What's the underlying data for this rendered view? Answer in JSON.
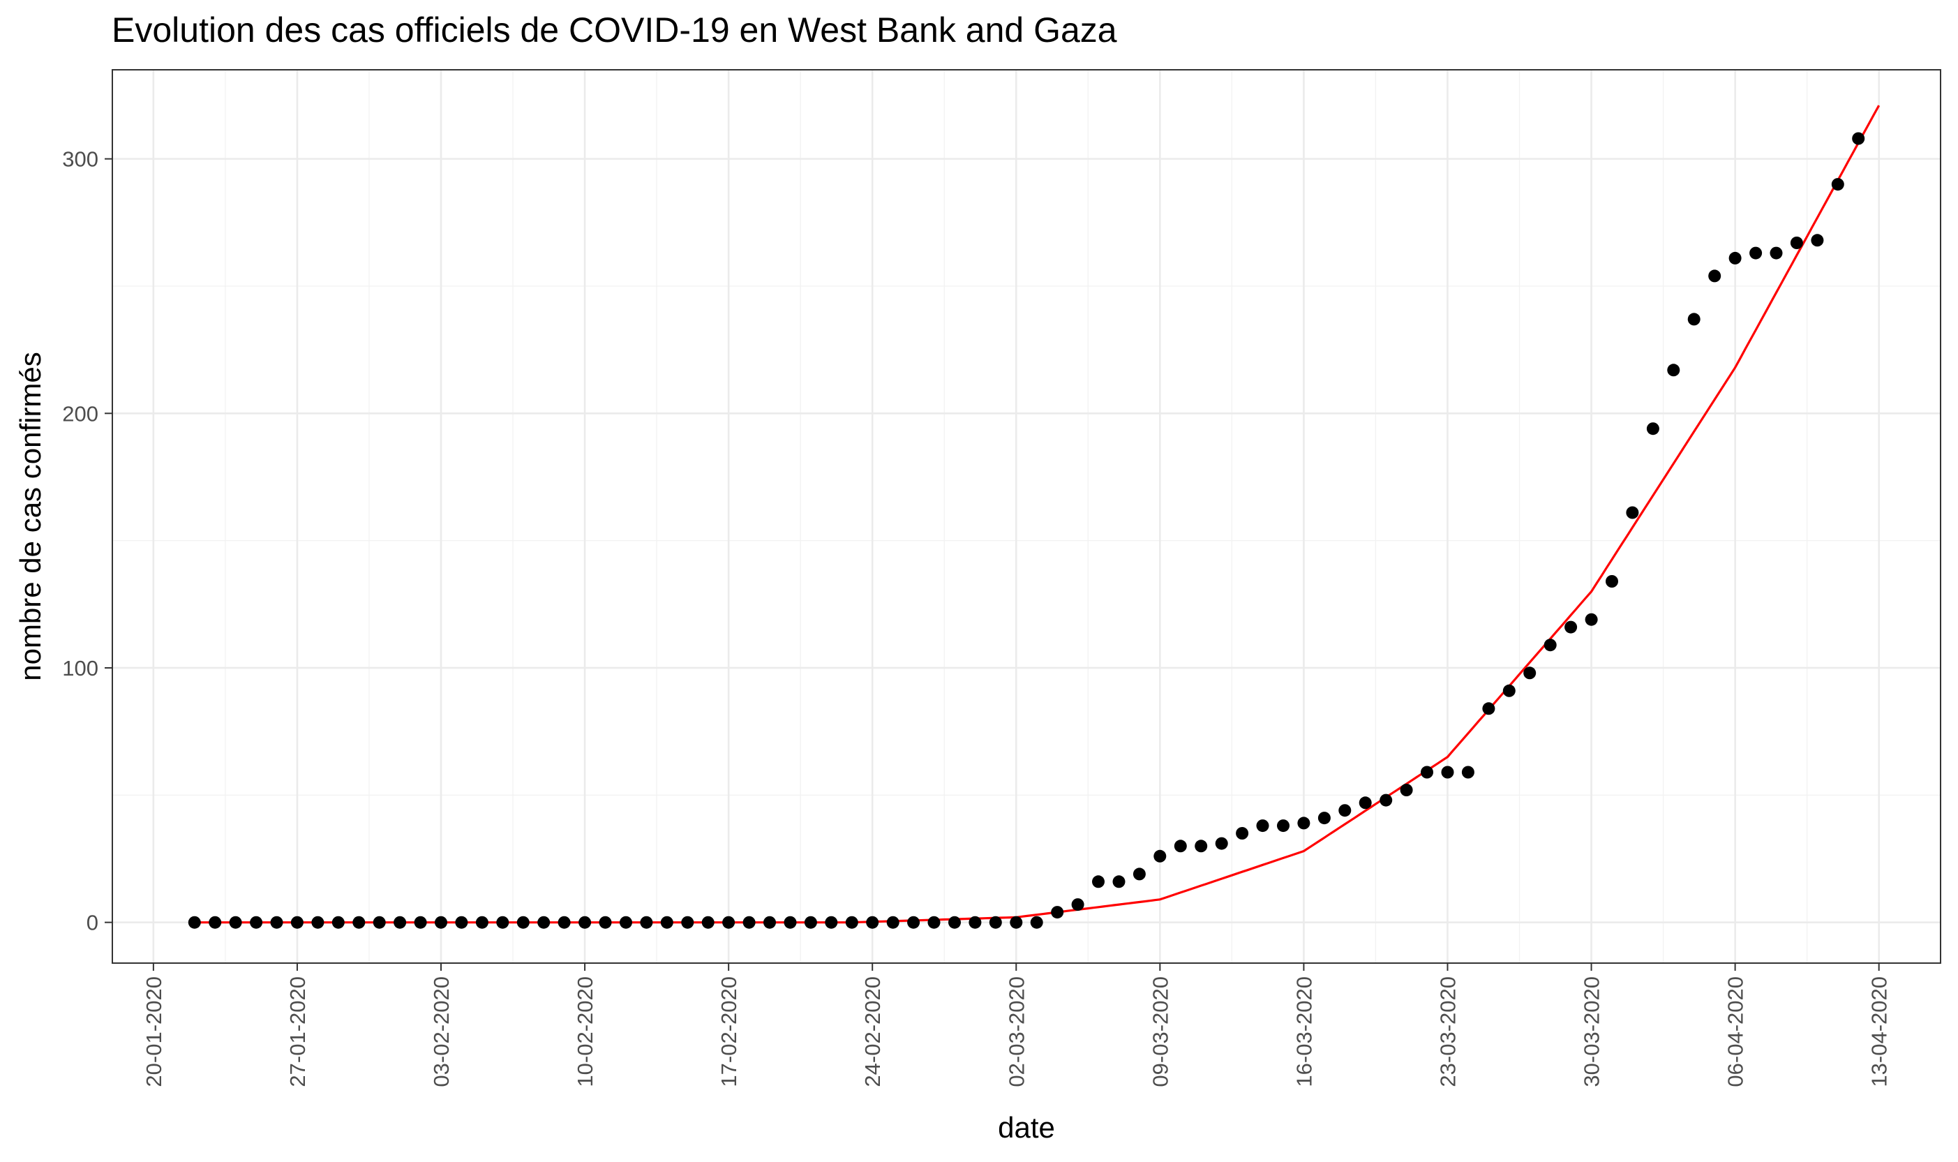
{
  "chart_data": {
    "type": "scatter",
    "title": "Evolution des cas officiels de COVID-19 en West Bank and Gaza",
    "xlabel": "date",
    "ylabel": "nombre de cas confirmés",
    "x_ticks": [
      "20-01-2020",
      "27-01-2020",
      "03-02-2020",
      "10-02-2020",
      "17-02-2020",
      "24-02-2020",
      "02-03-2020",
      "09-03-2020",
      "16-03-2020",
      "23-03-2020",
      "30-03-2020",
      "06-04-2020",
      "13-04-2020"
    ],
    "y_ticks": [
      "0",
      "100",
      "200",
      "300"
    ],
    "xlim": [
      "2020-01-18",
      "2020-04-16"
    ],
    "ylim": [
      -16,
      335
    ],
    "grid": true,
    "series": [
      {
        "kind": "points",
        "color": "#000000",
        "start_date": "2020-01-22",
        "y": [
          0,
          0,
          0,
          0,
          0,
          0,
          0,
          0,
          0,
          0,
          0,
          0,
          0,
          0,
          0,
          0,
          0,
          0,
          0,
          0,
          0,
          0,
          0,
          0,
          0,
          0,
          0,
          0,
          0,
          0,
          0,
          0,
          0,
          0,
          0,
          0,
          0,
          0,
          0,
          0,
          0,
          0,
          4,
          7,
          16,
          16,
          19,
          26,
          30,
          30,
          31,
          35,
          38,
          38,
          39,
          41,
          44,
          47,
          48,
          52,
          59,
          59,
          59,
          84,
          91,
          98,
          109,
          116,
          119,
          134,
          161,
          194,
          217,
          237,
          254,
          261,
          263,
          263,
          267,
          268,
          290,
          308
        ]
      },
      {
        "kind": "fit",
        "color": "#ff0000",
        "x": [
          "2020-01-22",
          "2020-02-23",
          "2020-03-02",
          "2020-03-09",
          "2020-03-16",
          "2020-03-23",
          "2020-03-30",
          "2020-04-06",
          "2020-04-13"
        ],
        "y": [
          0,
          0,
          2,
          9,
          28,
          65,
          130,
          218,
          321
        ]
      }
    ]
  }
}
